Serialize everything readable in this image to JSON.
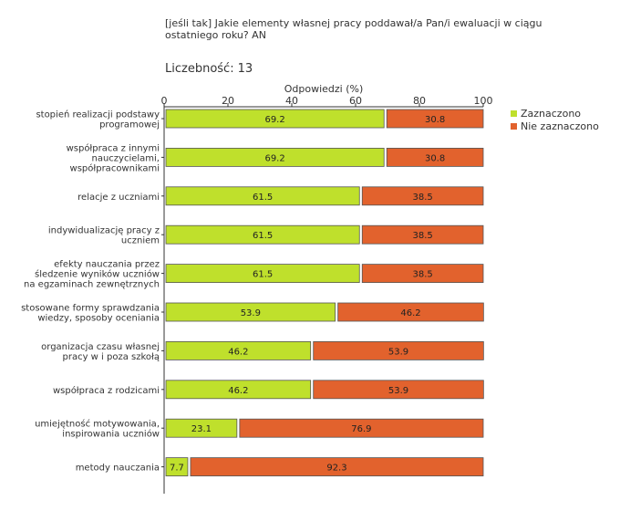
{
  "question": "[jeśli tak]  Jakie elementy własnej pracy poddawał/a Pan/i ewaluacji w ciągu ostatniego roku? AN",
  "count_label": "Liczebność:",
  "count_value": "13",
  "colors": {
    "selected": "#bfe02c",
    "not_selected": "#e2622d",
    "bar_border": "#555555",
    "axis": "#333333"
  },
  "chart_data": {
    "type": "bar",
    "orientation": "horizontal",
    "stacked": true,
    "xlabel": "Odpowiedzi (%)",
    "xlim": [
      0,
      100
    ],
    "ticks": [
      0,
      20,
      40,
      60,
      80,
      100
    ],
    "legend_position": "right",
    "categories": [
      [
        "stopień realizacji podstawy",
        "programowej"
      ],
      [
        "współpraca z innymi",
        "nauczycielami,",
        "współpracownikami"
      ],
      [
        "relacje z uczniami"
      ],
      [
        "indywidualizację pracy z",
        "uczniem"
      ],
      [
        "efekty nauczania przez",
        "śledzenie wyników uczniów",
        "na egzaminach zewnętrznych"
      ],
      [
        "stosowane formy sprawdzania",
        "wiedzy, sposoby oceniania"
      ],
      [
        "organizacja czasu własnej",
        "pracy w i poza szkołą"
      ],
      [
        "współpraca z rodzicami"
      ],
      [
        "umiejętność motywowania,",
        "inspirowania uczniów"
      ],
      [
        "metody nauczania"
      ]
    ],
    "series": [
      {
        "name": "Zaznaczono",
        "values": [
          69.2,
          69.2,
          61.5,
          61.5,
          61.5,
          53.9,
          46.2,
          46.2,
          23.1,
          7.7
        ]
      },
      {
        "name": "Nie zaznaczono",
        "values": [
          30.8,
          30.8,
          38.5,
          38.5,
          38.5,
          46.2,
          53.9,
          53.9,
          76.9,
          92.3
        ]
      }
    ]
  }
}
